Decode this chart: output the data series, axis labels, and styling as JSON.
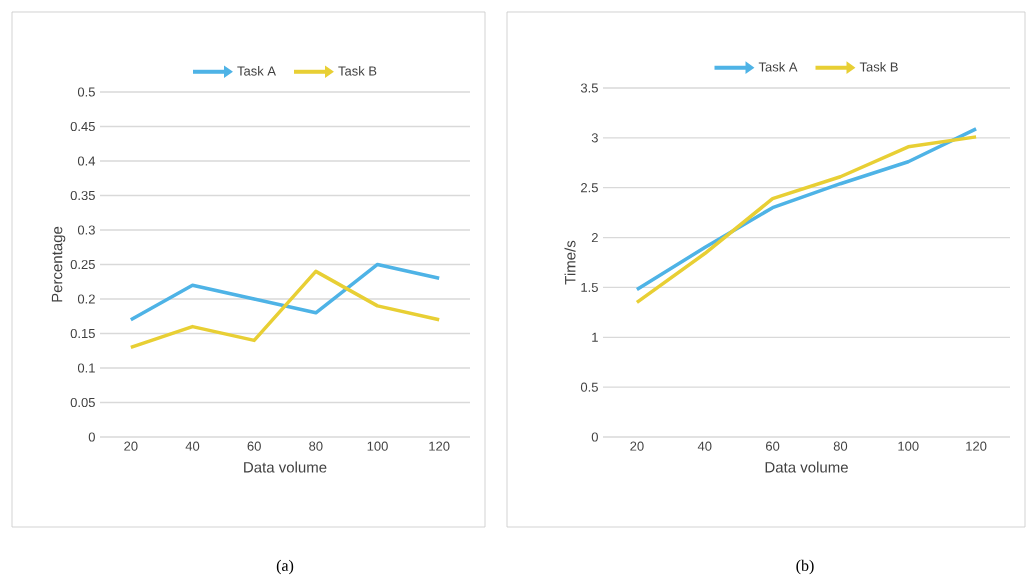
{
  "chart_data": [
    {
      "type": "line",
      "categories": [
        "20",
        "40",
        "60",
        "80",
        "100",
        "120"
      ],
      "xlabel": "Data volume",
      "ylabel": "Percentage",
      "series": [
        {
          "name": "Task A",
          "color": "#4eb3e6",
          "values": [
            0.17,
            0.22,
            0.2,
            0.18,
            0.25,
            0.23
          ]
        },
        {
          "name": "Task B",
          "color": "#e8cf34",
          "values": [
            0.13,
            0.16,
            0.14,
            0.24,
            0.19,
            0.17
          ]
        }
      ],
      "ylim": [
        0,
        0.5
      ],
      "yticks": [
        0,
        0.05,
        0.1,
        0.15,
        0.2,
        0.25,
        0.3,
        0.35,
        0.4,
        0.45,
        0.5
      ],
      "grid": "y",
      "legend": "top",
      "annotations": [
        "(a)"
      ]
    },
    {
      "type": "line",
      "categories": [
        "20",
        "40",
        "60",
        "80",
        "100",
        "120"
      ],
      "xlabel": "Data volume",
      "ylabel": "Time/s",
      "series": [
        {
          "name": "Task A",
          "color": "#4eb3e6",
          "values": [
            1.48,
            1.9,
            2.3,
            2.54,
            2.76,
            3.09
          ]
        },
        {
          "name": "Task B",
          "color": "#e8cf34",
          "values": [
            1.35,
            1.84,
            2.39,
            2.61,
            2.91,
            3.01
          ]
        }
      ],
      "ylim": [
        0,
        3.5
      ],
      "yticks": [
        0,
        0.5,
        1,
        1.5,
        2,
        2.5,
        3,
        3.5
      ],
      "grid": "y",
      "legend": "top",
      "annotations": [
        "(b)"
      ]
    }
  ]
}
